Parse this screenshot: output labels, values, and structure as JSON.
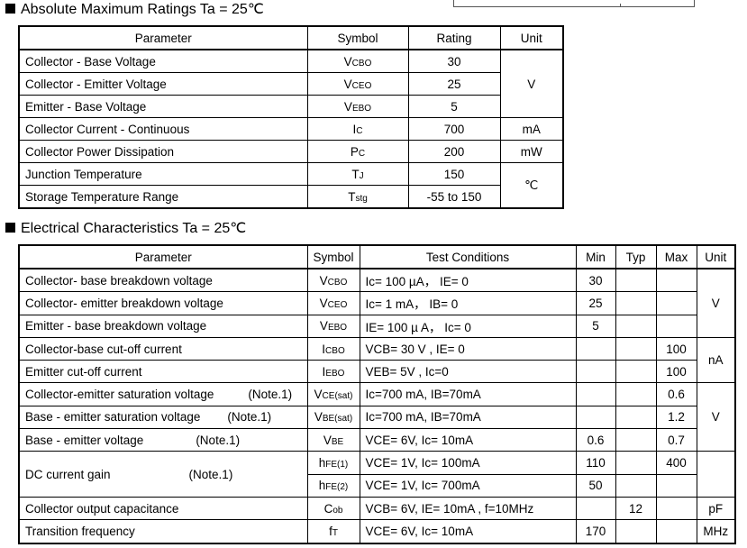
{
  "amr": {
    "title": "Absolute Maximum Ratings Ta = 25℃",
    "headers": [
      "Parameter",
      "Symbol",
      "Rating",
      "Unit"
    ],
    "rows": [
      {
        "parameter": "Collector - Base Voltage",
        "sym": "V",
        "sub": "CBO",
        "rating": "30"
      },
      {
        "parameter": "Collector - Emitter Voltage",
        "sym": "V",
        "sub": "CEO",
        "rating": "25"
      },
      {
        "parameter": "Emitter - Base Voltage",
        "sym": "V",
        "sub": "EBO",
        "rating": "5"
      },
      {
        "parameter": "Collector Current  - Continuous",
        "sym": "I",
        "sub": "C",
        "rating": "700",
        "unit": "mA"
      },
      {
        "parameter": "Collector Power Dissipation",
        "sym": "P",
        "sub": "C",
        "rating": "200",
        "unit": "mW"
      },
      {
        "parameter": "Junction Temperature",
        "sym": "T",
        "sub": "J",
        "rating": "150"
      },
      {
        "parameter": "Storage Temperature Range",
        "sym": "T",
        "sub": "stg",
        "rating": "-55 to 150"
      }
    ],
    "unit_voltage": "V",
    "unit_temp": "℃"
  },
  "ec": {
    "title": "Electrical Characteristics Ta = 25℃",
    "headers": [
      "Parameter",
      "Symbol",
      "Test Conditions",
      "Min",
      "Typ",
      "Max",
      "Unit"
    ],
    "rows": [
      {
        "parameter": "Collector- base breakdown voltage",
        "sym": "V",
        "sub": "CBO",
        "cond": "Ic= 100 µA，  IE= 0",
        "min": "30"
      },
      {
        "parameter": "Collector- emitter breakdown voltage",
        "sym": "V",
        "sub": "CEO",
        "cond": "Ic= 1 mA，  IB= 0",
        "min": "25"
      },
      {
        "parameter": "Emitter - base breakdown voltage",
        "sym": "V",
        "sub": "EBO",
        "cond": "IE= 100 µ A，  Ic= 0",
        "min": "5"
      },
      {
        "parameter": "Collector-base cut-off current",
        "sym": "I",
        "sub": "CBO",
        "cond": "VCB= 30 V , IE= 0",
        "max": "100"
      },
      {
        "parameter": "Emitter cut-off current",
        "sym": "I",
        "sub": "EBO",
        "cond": "VEB= 5V , Ic=0",
        "max": "100"
      },
      {
        "parameter": "Collector-emitter saturation voltage",
        "note": "(Note.1)",
        "sym": "V",
        "sub": "CE(sat)",
        "cond": "Ic=700 mA, IB=70mA",
        "max": "0.6"
      },
      {
        "parameter": "Base - emitter saturation voltage",
        "note": "(Note.1)",
        "sym": "V",
        "sub": "BE(sat)",
        "cond": "Ic=700 mA, IB=70mA",
        "max": "1.2"
      },
      {
        "parameter": "Base - emitter voltage",
        "note": "(Note.1)",
        "sym": "V",
        "sub": "BE",
        "cond": "VCE= 6V, Ic= 10mA",
        "min": "0.6",
        "max": "0.7"
      },
      {
        "parameter": "DC current gain",
        "note": "(Note.1)",
        "sym": "h",
        "sub": "FE(1)",
        "cond": "VCE= 1V, Ic= 100mA",
        "min": "110",
        "max": "400"
      },
      {
        "sym": "h",
        "sub": "FE(2)",
        "cond": "VCE= 1V, Ic= 700mA",
        "min": "50"
      },
      {
        "parameter": "Collector output  capacitance",
        "sym": "C",
        "sub": "ob",
        "cond": "VCB= 6V, IE= 10mA , f=10MHz",
        "typ": "12",
        "unit": "pF"
      },
      {
        "parameter": "Transition frequency",
        "sym": "f",
        "sub": "T",
        "cond": "VCE= 6V, Ic= 10mA",
        "min": "170",
        "unit": "MHz"
      }
    ],
    "unit_v": "V",
    "unit_na": "nA"
  }
}
